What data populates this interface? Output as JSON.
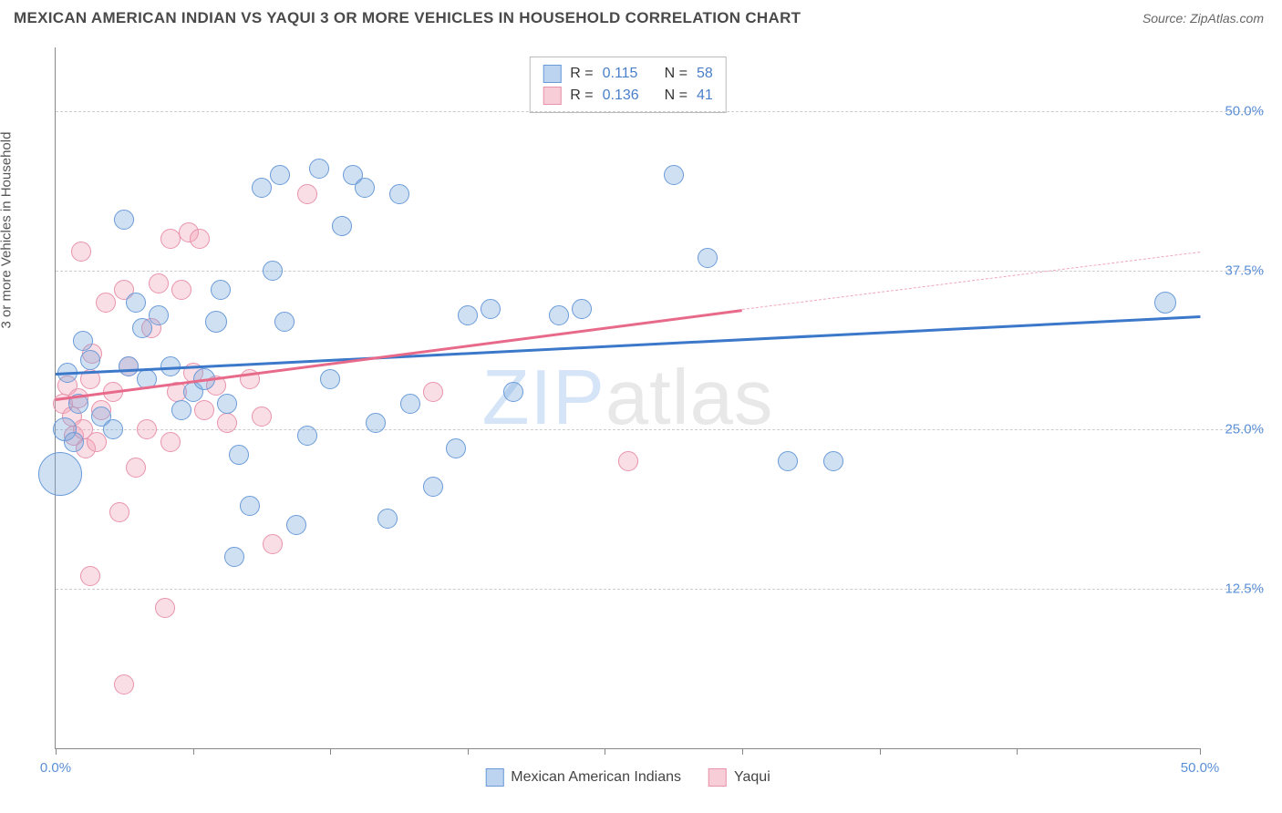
{
  "title": "MEXICAN AMERICAN INDIAN VS YAQUI 3 OR MORE VEHICLES IN HOUSEHOLD CORRELATION CHART",
  "source_label": "Source: ",
  "source_name": "ZipAtlas.com",
  "watermark_a": "ZIP",
  "watermark_b": "atlas",
  "ylabel": "3 or more Vehicles in Household",
  "chart": {
    "type": "scatter",
    "xlim": [
      0,
      50
    ],
    "ylim": [
      0,
      55
    ],
    "y_ticks": [
      12.5,
      25.0,
      37.5,
      50.0
    ],
    "y_tick_labels": [
      "12.5%",
      "25.0%",
      "37.5%",
      "50.0%"
    ],
    "x_tick_positions": [
      0,
      6,
      12,
      18,
      24,
      30,
      36,
      42,
      50
    ],
    "x_end_labels": {
      "first": "0.0%",
      "last": "50.0%"
    },
    "background_color": "#ffffff",
    "grid_color": "#cccccc",
    "axis_color": "#888888",
    "series": {
      "blue": {
        "label": "Mexican American Indians",
        "fill": "rgba(120,165,220,0.35)",
        "stroke": "#6a9bd8",
        "swatch_fill": "#bcd4f0",
        "swatch_border": "#6a9bd8",
        "R": "0.115",
        "N": "58",
        "trend": {
          "x1": 0,
          "y1": 29.5,
          "x2": 50,
          "y2": 34.0,
          "color": "#3b78c9",
          "width": 2.5
        },
        "points": [
          [
            0.2,
            21.5,
            24
          ],
          [
            0.4,
            25,
            13
          ],
          [
            0.5,
            29.5,
            11
          ],
          [
            0.8,
            24,
            11
          ],
          [
            1.0,
            27,
            11
          ],
          [
            1.2,
            32,
            11
          ],
          [
            1.5,
            30.5,
            11
          ],
          [
            2.0,
            26,
            11
          ],
          [
            2.5,
            25,
            11
          ],
          [
            3.0,
            41.5,
            11
          ],
          [
            3.2,
            30,
            11
          ],
          [
            3.5,
            35,
            11
          ],
          [
            3.8,
            33,
            11
          ],
          [
            4.0,
            29,
            11
          ],
          [
            4.5,
            34,
            11
          ],
          [
            5.0,
            30,
            11
          ],
          [
            5.5,
            26.5,
            11
          ],
          [
            6.0,
            28,
            11
          ],
          [
            6.5,
            29,
            12
          ],
          [
            7.0,
            33.5,
            12
          ],
          [
            7.2,
            36,
            11
          ],
          [
            7.5,
            27,
            11
          ],
          [
            7.8,
            15,
            11
          ],
          [
            8.0,
            23,
            11
          ],
          [
            8.5,
            19,
            11
          ],
          [
            9.0,
            44,
            11
          ],
          [
            9.5,
            37.5,
            11
          ],
          [
            9.8,
            45,
            11
          ],
          [
            10.0,
            33.5,
            11
          ],
          [
            10.5,
            17.5,
            11
          ],
          [
            11.0,
            24.5,
            11
          ],
          [
            11.5,
            45.5,
            11
          ],
          [
            12.0,
            29,
            11
          ],
          [
            12.5,
            41,
            11
          ],
          [
            13.0,
            45,
            11
          ],
          [
            13.5,
            44,
            11
          ],
          [
            14.0,
            25.5,
            11
          ],
          [
            14.5,
            18,
            11
          ],
          [
            15.0,
            43.5,
            11
          ],
          [
            15.5,
            27,
            11
          ],
          [
            16.5,
            20.5,
            11
          ],
          [
            17.5,
            23.5,
            11
          ],
          [
            18.0,
            34,
            11
          ],
          [
            19.0,
            34.5,
            11
          ],
          [
            20.0,
            28,
            11
          ],
          [
            22.0,
            34,
            11
          ],
          [
            23.0,
            34.5,
            11
          ],
          [
            27.0,
            45,
            11
          ],
          [
            28.5,
            38.5,
            11
          ],
          [
            32.0,
            22.5,
            11
          ],
          [
            34.0,
            22.5,
            11
          ],
          [
            48.5,
            35,
            12
          ]
        ]
      },
      "pink": {
        "label": "Yaqui",
        "fill": "rgba(240,160,180,0.35)",
        "stroke": "#e893ab",
        "swatch_fill": "#f7cdd8",
        "swatch_border": "#e893ab",
        "R": "0.136",
        "N": "41",
        "trend_solid": {
          "x1": 0,
          "y1": 27.5,
          "x2": 30,
          "y2": 34.5,
          "color": "#e86a8a",
          "width": 2.5
        },
        "trend_dash": {
          "x1": 30,
          "y1": 34.5,
          "x2": 50,
          "y2": 39.0,
          "color": "#f0a8ba",
          "width": 1.5
        },
        "points": [
          [
            0.3,
            27,
            11
          ],
          [
            0.5,
            28.5,
            11
          ],
          [
            0.7,
            26,
            11
          ],
          [
            0.8,
            24.5,
            11
          ],
          [
            1.0,
            27.5,
            11
          ],
          [
            1.1,
            39,
            11
          ],
          [
            1.2,
            25,
            11
          ],
          [
            1.3,
            23.5,
            11
          ],
          [
            1.5,
            29,
            11
          ],
          [
            1.6,
            31,
            11
          ],
          [
            1.8,
            24,
            11
          ],
          [
            2.0,
            26.5,
            11
          ],
          [
            2.2,
            35,
            11
          ],
          [
            2.5,
            28,
            11
          ],
          [
            2.8,
            18.5,
            11
          ],
          [
            3.0,
            36,
            11
          ],
          [
            3.2,
            30,
            11
          ],
          [
            3.5,
            22,
            11
          ],
          [
            3.0,
            5,
            11
          ],
          [
            4.0,
            25,
            11
          ],
          [
            4.2,
            33,
            11
          ],
          [
            4.5,
            36.5,
            11
          ],
          [
            4.8,
            11,
            11
          ],
          [
            5.0,
            40,
            11
          ],
          [
            5.0,
            24,
            11
          ],
          [
            5.3,
            28,
            11
          ],
          [
            5.5,
            36,
            11
          ],
          [
            5.8,
            40.5,
            11
          ],
          [
            6.0,
            29.5,
            11
          ],
          [
            6.3,
            40,
            11
          ],
          [
            6.5,
            26.5,
            11
          ],
          [
            7.0,
            28.5,
            11
          ],
          [
            7.5,
            25.5,
            11
          ],
          [
            8.5,
            29,
            11
          ],
          [
            9.0,
            26,
            11
          ],
          [
            9.5,
            16,
            11
          ],
          [
            11.0,
            43.5,
            11
          ],
          [
            1.5,
            13.5,
            11
          ],
          [
            16.5,
            28,
            11
          ],
          [
            25.0,
            22.5,
            11
          ]
        ]
      }
    }
  },
  "legend_top": {
    "r_label": "R =",
    "n_label": "N ="
  },
  "legend_bottom_gap": "30px"
}
